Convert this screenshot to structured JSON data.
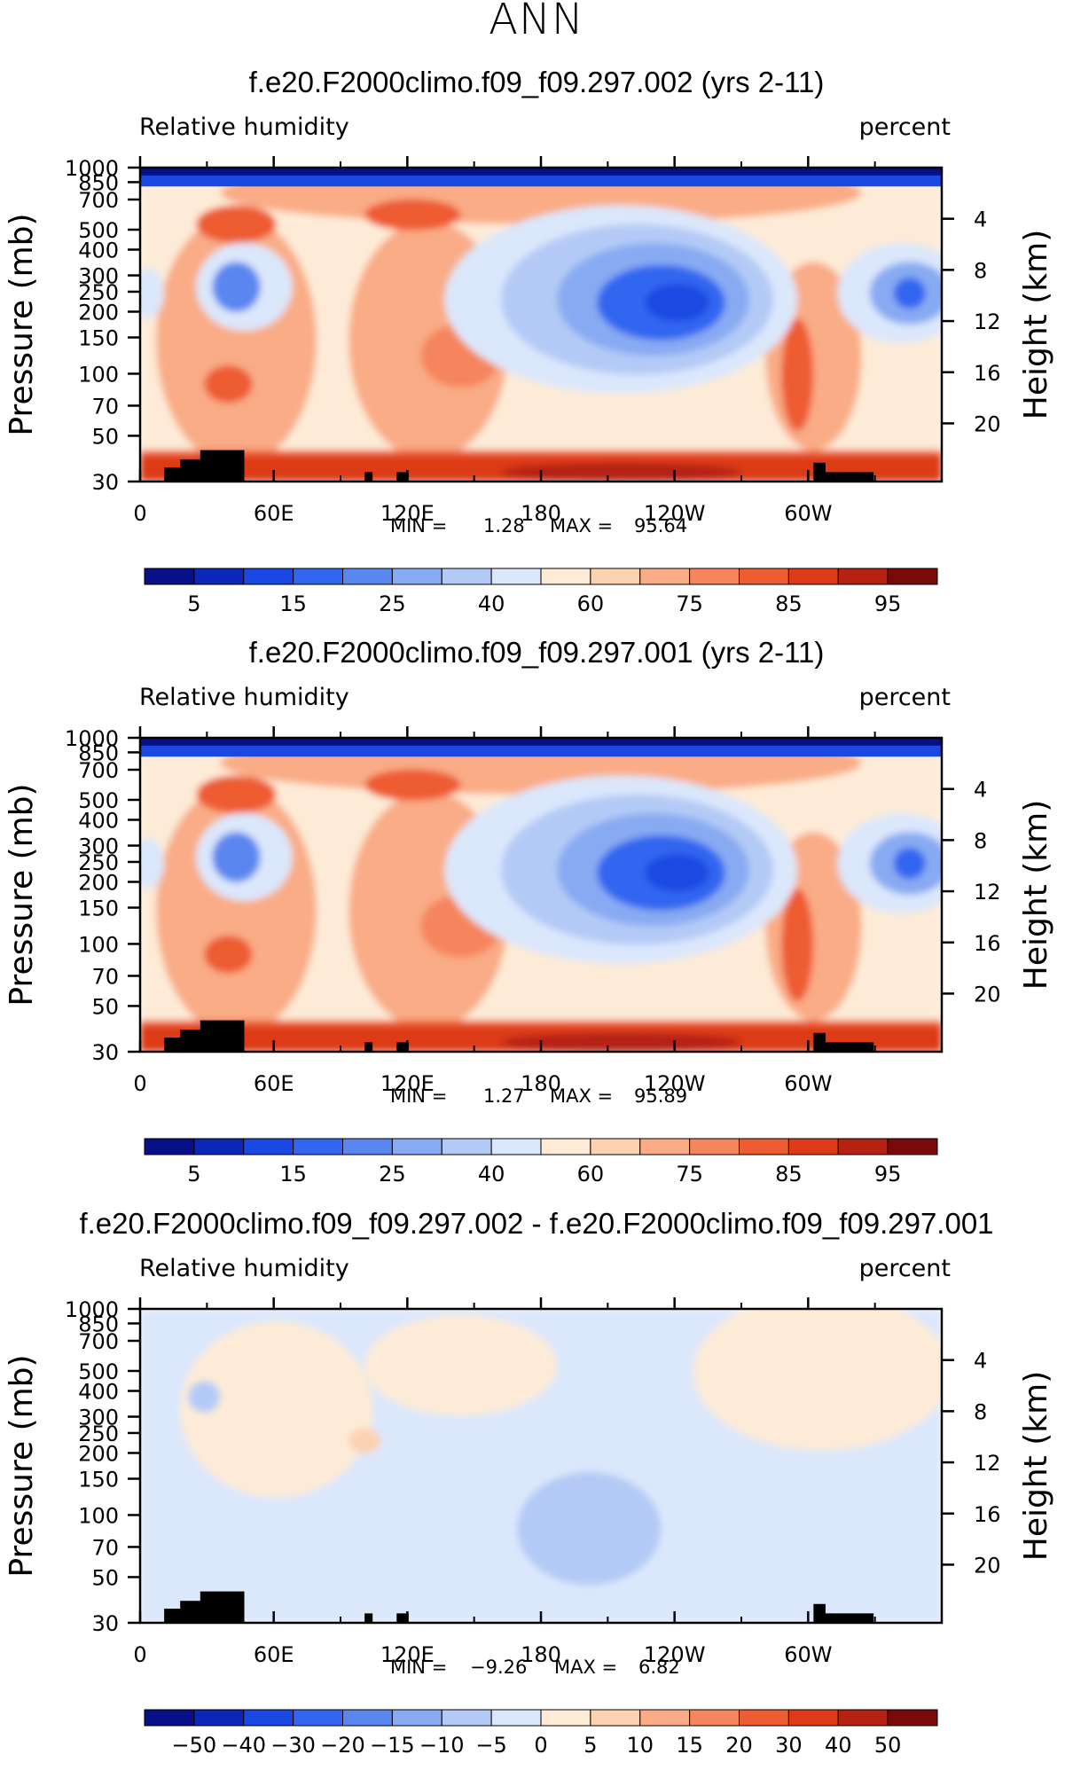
{
  "figure_title": "ANN",
  "chart_data": [
    {
      "type": "heatmap",
      "title": "f.e20.F2000climo.f09_f09.297.002 (yrs 2-11)",
      "variable": "Relative humidity",
      "units": "percent",
      "ylabel": "Pressure (mb)",
      "ylabel_right": "Height (km)",
      "x_ticks": [
        "0",
        "60E",
        "120E",
        "180",
        "120W",
        "60W"
      ],
      "y_ticks": [
        "30",
        "50",
        "70",
        "100",
        "150",
        "200",
        "250",
        "300",
        "400",
        "500",
        "700",
        "850",
        "1000"
      ],
      "y_ticks_right": [
        "20",
        "16",
        "12",
        "8",
        "4"
      ],
      "min_label": "MIN =",
      "min_value": "1.28",
      "max_label": "MAX =",
      "max_value": "95.64",
      "colorbar_labels": [
        "5",
        "15",
        "25",
        "40",
        "60",
        "75",
        "85",
        "95"
      ],
      "colorbar_colors": [
        "#081088",
        "#0c26b8",
        "#1b48e2",
        "#3366f0",
        "#5a86f0",
        "#88aaf2",
        "#b4caf6",
        "#dbe7fb",
        "#fdebd7",
        "#fcd2b2",
        "#f9ac86",
        "#f5855c",
        "#ee5c32",
        "#dc3a18",
        "#b52212",
        "#7a0a0a"
      ]
    },
    {
      "type": "heatmap",
      "title": "f.e20.F2000climo.f09_f09.297.001 (yrs 2-11)",
      "variable": "Relative humidity",
      "units": "percent",
      "ylabel": "Pressure (mb)",
      "ylabel_right": "Height (km)",
      "x_ticks": [
        "0",
        "60E",
        "120E",
        "180",
        "120W",
        "60W"
      ],
      "y_ticks": [
        "30",
        "50",
        "70",
        "100",
        "150",
        "200",
        "250",
        "300",
        "400",
        "500",
        "700",
        "850",
        "1000"
      ],
      "y_ticks_right": [
        "20",
        "16",
        "12",
        "8",
        "4"
      ],
      "min_label": "MIN =",
      "min_value": "1.27",
      "max_label": "MAX =",
      "max_value": "95.89",
      "colorbar_labels": [
        "5",
        "15",
        "25",
        "40",
        "60",
        "75",
        "85",
        "95"
      ],
      "colorbar_colors": [
        "#081088",
        "#0c26b8",
        "#1b48e2",
        "#3366f0",
        "#5a86f0",
        "#88aaf2",
        "#b4caf6",
        "#dbe7fb",
        "#fdebd7",
        "#fcd2b2",
        "#f9ac86",
        "#f5855c",
        "#ee5c32",
        "#dc3a18",
        "#b52212",
        "#7a0a0a"
      ]
    },
    {
      "type": "heatmap",
      "title": "f.e20.F2000climo.f09_f09.297.002 - f.e20.F2000climo.f09_f09.297.001",
      "variable": "Relative humidity",
      "units": "percent",
      "ylabel": "Pressure (mb)",
      "ylabel_right": "Height (km)",
      "x_ticks": [
        "0",
        "60E",
        "120E",
        "180",
        "120W",
        "60W"
      ],
      "y_ticks": [
        "30",
        "50",
        "70",
        "100",
        "150",
        "200",
        "250",
        "300",
        "400",
        "500",
        "700",
        "850",
        "1000"
      ],
      "y_ticks_right": [
        "20",
        "16",
        "12",
        "8",
        "4"
      ],
      "min_label": "MIN =",
      "min_value": "−9.26",
      "max_label": "MAX =",
      "max_value": "6.82",
      "colorbar_labels": [
        "−50",
        "−40",
        "−30",
        "−20",
        "−15",
        "−10",
        "−5",
        "0",
        "5",
        "10",
        "15",
        "20",
        "30",
        "40",
        "50"
      ],
      "colorbar_colors": [
        "#081088",
        "#0c26b8",
        "#1b48e2",
        "#3366f0",
        "#5a86f0",
        "#88aaf2",
        "#b4caf6",
        "#dbe7fb",
        "#fdebd7",
        "#fcd2b2",
        "#f9ac86",
        "#f5855c",
        "#ee5c32",
        "#dc3a18",
        "#b52212",
        "#7a0a0a"
      ]
    }
  ]
}
